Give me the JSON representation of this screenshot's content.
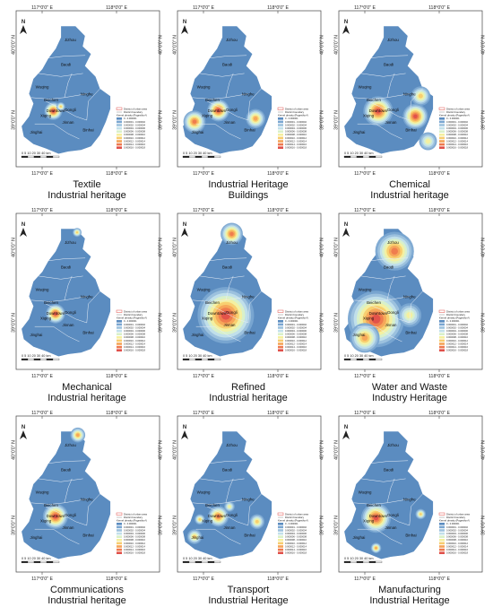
{
  "lon_labels": [
    "117°0'0\" E",
    "118°0'0\" E"
  ],
  "lat_labels": [
    "40°0'0\" N",
    "39°0'0\" N"
  ],
  "north_label": "N",
  "scale_label": "0 5 10   20   30   40 km",
  "place_names": [
    "Jizhou",
    "Baodi",
    "Wuqing",
    "Beichen",
    "Ninghe",
    "Dongli",
    "Downtown",
    "Xiqing",
    "Jinnan",
    "Binhai",
    "Jinghai"
  ],
  "legend": {
    "title_line1": "District of urban area",
    "title_line2": "District boundary",
    "title_line3": "Kernel density (Pages/km²)",
    "ranges": [
      "0 - 0.000001",
      "0.000001 - 0.000002",
      "0.000002 - 0.000004",
      "0.000004 - 0.000006",
      "0.000006 - 0.000008",
      "0.000008 - 0.000010",
      "0.000010 - 0.000012",
      "0.000012 - 0.000014",
      "0.000014 - 0.000016",
      "0.000016 - 0.000018"
    ],
    "colors": [
      "#5b8cc0",
      "#7aa6d1",
      "#9ec2de",
      "#c2e0ea",
      "#d9f0c9",
      "#f5ef9e",
      "#f8cc6e",
      "#f5a458",
      "#ee7a4e",
      "#e0504a"
    ]
  },
  "panels": [
    {
      "caption1": "Textile",
      "caption2": "Industrial heritage",
      "hotspots": [
        {
          "lon": 117.15,
          "lat": 39.12,
          "r": 0.12,
          "level": 9
        },
        {
          "lon": 117.25,
          "lat": 39.18,
          "r": 0.06,
          "level": 6
        }
      ]
    },
    {
      "caption1": "Industrial Heritage",
      "caption2": "Buildings",
      "hotspots": [
        {
          "lon": 117.2,
          "lat": 39.13,
          "r": 0.15,
          "level": 9
        },
        {
          "lon": 116.88,
          "lat": 38.98,
          "r": 0.15,
          "level": 8
        },
        {
          "lon": 117.7,
          "lat": 39.02,
          "r": 0.13,
          "level": 7
        }
      ]
    },
    {
      "caption1": "Chemical",
      "caption2": "Industrial heritage",
      "hotspots": [
        {
          "lon": 117.18,
          "lat": 39.12,
          "r": 0.2,
          "level": 9
        },
        {
          "lon": 117.68,
          "lat": 39.05,
          "r": 0.17,
          "level": 9
        },
        {
          "lon": 117.75,
          "lat": 39.32,
          "r": 0.13,
          "level": 6
        },
        {
          "lon": 117.85,
          "lat": 38.72,
          "r": 0.12,
          "level": 5
        }
      ]
    },
    {
      "caption1": "Mechanical",
      "caption2": "Industrial heritage",
      "hotspots": [
        {
          "lon": 117.18,
          "lat": 39.12,
          "r": 0.13,
          "level": 9
        },
        {
          "lon": 117.47,
          "lat": 40.2,
          "r": 0.06,
          "level": 6
        }
      ]
    },
    {
      "caption1": "Refined",
      "caption2": "Industrial heritage",
      "hotspots": [
        {
          "lon": 117.3,
          "lat": 39.1,
          "r": 0.38,
          "level": 9
        },
        {
          "lon": 117.38,
          "lat": 40.18,
          "r": 0.15,
          "level": 8
        }
      ]
    },
    {
      "caption1": "Water and Waste",
      "caption2": "Industry Heritage",
      "hotspots": [
        {
          "lon": 117.4,
          "lat": 39.95,
          "r": 0.26,
          "level": 8
        },
        {
          "lon": 117.15,
          "lat": 39.05,
          "r": 0.38,
          "level": 9
        },
        {
          "lon": 117.0,
          "lat": 38.8,
          "r": 0.2,
          "level": 7
        },
        {
          "lon": 117.6,
          "lat": 39.1,
          "r": 0.16,
          "level": 5
        }
      ]
    },
    {
      "caption1": "Communications",
      "caption2": "Industrial heritage",
      "hotspots": [
        {
          "lon": 117.18,
          "lat": 39.12,
          "r": 0.17,
          "level": 9
        },
        {
          "lon": 117.48,
          "lat": 40.2,
          "r": 0.1,
          "level": 7
        }
      ]
    },
    {
      "caption1": "Transport",
      "caption2": "Industrial Heritage",
      "hotspots": [
        {
          "lon": 117.2,
          "lat": 39.12,
          "r": 0.14,
          "level": 8
        },
        {
          "lon": 116.95,
          "lat": 39.08,
          "r": 0.07,
          "level": 6
        },
        {
          "lon": 117.72,
          "lat": 39.05,
          "r": 0.1,
          "level": 6
        },
        {
          "lon": 116.88,
          "lat": 38.85,
          "r": 0.1,
          "level": 6
        },
        {
          "lon": 117.35,
          "lat": 39.25,
          "r": 0.07,
          "level": 5
        }
      ]
    },
    {
      "caption1": "Manufacturing",
      "caption2": "Industrial Heritage",
      "hotspots": [
        {
          "lon": 117.15,
          "lat": 39.1,
          "r": 0.2,
          "level": 9
        },
        {
          "lon": 117.75,
          "lat": 39.15,
          "r": 0.07,
          "level": 6
        },
        {
          "lon": 117.15,
          "lat": 38.7,
          "r": 0.07,
          "level": 7
        }
      ]
    }
  ]
}
